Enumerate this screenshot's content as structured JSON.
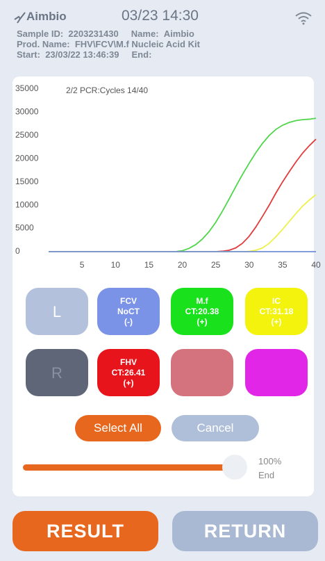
{
  "header": {
    "brand": "Aimbio",
    "datetime": "03/23 14:30",
    "info": [
      [
        "Sample ID:",
        "2203231430",
        "Name:",
        "Aimbio"
      ],
      [
        "Prod. Name:",
        "FHV\\FCV\\M.f Nucleic Acid Kit"
      ],
      [
        "Start:",
        "23/03/22 13:46:39",
        "End:"
      ]
    ]
  },
  "chart_data": {
    "type": "line",
    "annotation": "2/2 PCR:Cycles 14/40",
    "x": [
      0,
      19,
      20,
      21,
      22,
      23,
      24,
      25,
      26,
      27,
      28,
      29,
      30,
      31,
      32,
      33,
      34,
      35,
      36,
      37,
      38,
      39,
      40
    ],
    "series": [
      {
        "color": "#4fd64a",
        "values": [
          0,
          0,
          200,
          700,
          1500,
          2700,
          4300,
          6300,
          8700,
          11300,
          14000,
          16600,
          19000,
          21300,
          23300,
          25000,
          26300,
          27200,
          27800,
          28200,
          28400,
          28500,
          28700
        ]
      },
      {
        "color": "#e23b3b",
        "values": [
          0,
          0,
          0,
          0,
          0,
          0,
          0,
          0,
          100,
          300,
          800,
          1800,
          3300,
          5300,
          7600,
          10000,
          12600,
          15000,
          17200,
          19300,
          21200,
          22800,
          24200
        ]
      },
      {
        "color": "#eef04a",
        "values": [
          0,
          0,
          0,
          0,
          0,
          0,
          0,
          0,
          0,
          0,
          0,
          0,
          50,
          300,
          800,
          1800,
          3200,
          4800,
          6500,
          8200,
          9800,
          11100,
          12300
        ]
      },
      {
        "color": "#6f8fd8",
        "values": [
          0,
          0,
          0,
          0,
          0,
          0,
          0,
          0,
          0,
          0,
          0,
          0,
          0,
          0,
          0,
          0,
          0,
          0,
          0,
          0,
          0,
          0,
          0
        ]
      }
    ],
    "xlim": [
      0,
      40
    ],
    "xticks": [
      5,
      10,
      15,
      20,
      25,
      30,
      35,
      40
    ],
    "ylim": [
      0,
      35000
    ],
    "yticks": [
      0,
      5000,
      10000,
      15000,
      20000,
      25000,
      30000,
      35000
    ]
  },
  "channels": [
    [
      "L"
    ],
    [
      "FCV",
      "NoCT",
      "(-)"
    ],
    [
      "M.f",
      "CT:20.38",
      "(+)"
    ],
    [
      "IC",
      "CT:31.18",
      "(+)"
    ],
    [
      "R"
    ],
    [
      "FHV",
      "CT:26.41",
      "(+)"
    ]
  ],
  "controls": {
    "select_all": "Select All",
    "cancel": "Cancel",
    "progress": "100%",
    "progress_state": "End"
  },
  "buttons": {
    "result": "RESULT",
    "return": "RETURN"
  }
}
